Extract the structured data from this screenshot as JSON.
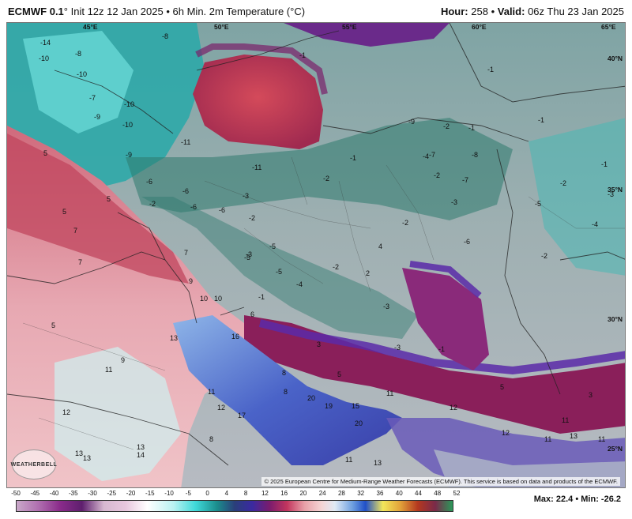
{
  "header": {
    "model": "ECMWF 0.1",
    "model_suffix": "°",
    "init": "Init 12z 12 Jan 2025",
    "separator": "•",
    "product": "6h Min. 2m Temperature (°C)",
    "hour_label": "Hour:",
    "hour_value": "258",
    "valid_label": "Valid:",
    "valid_value": "06z Thu 23 Jan 2025"
  },
  "coords": {
    "lon_45": "45°E",
    "lon_50": "50°E",
    "lon_55": "55°E",
    "lon_60": "60°E",
    "lon_65": "65°E",
    "lat_40": "40°N",
    "lat_35": "35°N",
    "lat_30": "30°N",
    "lat_25": "25°N"
  },
  "credit": "© 2025 European Centre for Medium-Range Weather Forecasts (ECMWF). This service is based on data and products of the ECMWF.",
  "logo_text": "WEATHERBELL",
  "legend": {
    "ticks": [
      "-50",
      "-45",
      "-40",
      "-35",
      "-30",
      "-25",
      "-20",
      "-15",
      "-10",
      "-5",
      "0",
      "4",
      "8",
      "12",
      "16",
      "20",
      "24",
      "28",
      "32",
      "36",
      "40",
      "44",
      "48",
      "52"
    ],
    "max_label": "Max:",
    "max_value": "22.4",
    "min_label": "Min:",
    "min_value": "-26.2"
  },
  "map_labels": [
    {
      "t": "-14"
    },
    {
      "t": "-8"
    },
    {
      "t": "-10"
    },
    {
      "t": "-8"
    },
    {
      "t": "-1"
    },
    {
      "t": "-10"
    },
    {
      "t": "-7"
    },
    {
      "t": "-10"
    },
    {
      "t": "-9"
    },
    {
      "t": "-10"
    },
    {
      "t": "-11"
    },
    {
      "t": "-9"
    },
    {
      "t": "-6"
    },
    {
      "t": "-6"
    },
    {
      "t": "-2"
    },
    {
      "t": "-6"
    },
    {
      "t": "-6"
    },
    {
      "t": "-3"
    },
    {
      "t": "-2"
    },
    {
      "t": "-2"
    },
    {
      "t": "-7"
    },
    {
      "t": "-1"
    },
    {
      "t": "-11"
    },
    {
      "t": "-2"
    },
    {
      "t": "-9"
    },
    {
      "t": "-4"
    },
    {
      "t": "-8"
    },
    {
      "t": "-7"
    },
    {
      "t": "-2"
    },
    {
      "t": "-1"
    },
    {
      "t": "-3"
    },
    {
      "t": "-5"
    },
    {
      "t": "-4"
    },
    {
      "t": "-5"
    },
    {
      "t": "-3"
    },
    {
      "t": "-6"
    },
    {
      "t": "-2"
    },
    {
      "t": "-2"
    },
    {
      "t": "-3"
    },
    {
      "t": "-1"
    },
    {
      "t": "-5"
    },
    {
      "t": "-5"
    },
    {
      "t": "-4"
    },
    {
      "t": "-2"
    },
    {
      "t": "-3"
    },
    {
      "t": "-1"
    },
    {
      "t": "-3"
    },
    {
      "t": "-2"
    },
    {
      "t": "-1"
    },
    {
      "t": "-1"
    },
    {
      "t": "-1"
    },
    {
      "t": "5"
    },
    {
      "t": "5"
    },
    {
      "t": "7"
    },
    {
      "t": "7"
    },
    {
      "t": "7"
    },
    {
      "t": "9"
    },
    {
      "t": "10"
    },
    {
      "t": "10"
    },
    {
      "t": "5"
    },
    {
      "t": "9"
    },
    {
      "t": "11"
    },
    {
      "t": "16"
    },
    {
      "t": "13"
    },
    {
      "t": "11"
    },
    {
      "t": "12"
    },
    {
      "t": "8"
    },
    {
      "t": "8"
    },
    {
      "t": "3"
    },
    {
      "t": "5"
    },
    {
      "t": "5"
    },
    {
      "t": "3"
    },
    {
      "t": "20"
    },
    {
      "t": "19"
    },
    {
      "t": "15"
    },
    {
      "t": "20"
    },
    {
      "t": "12"
    },
    {
      "t": "11"
    },
    {
      "t": "12"
    },
    {
      "t": "17"
    },
    {
      "t": "13"
    },
    {
      "t": "14"
    },
    {
      "t": "13"
    },
    {
      "t": "13"
    },
    {
      "t": "11"
    },
    {
      "t": "13"
    },
    {
      "t": "11"
    },
    {
      "t": "12"
    },
    {
      "t": "13"
    },
    {
      "t": "11"
    },
    {
      "t": "11"
    },
    {
      "t": "5"
    },
    {
      "t": "6"
    },
    {
      "t": "4"
    },
    {
      "t": "2"
    },
    {
      "t": "8"
    }
  ]
}
